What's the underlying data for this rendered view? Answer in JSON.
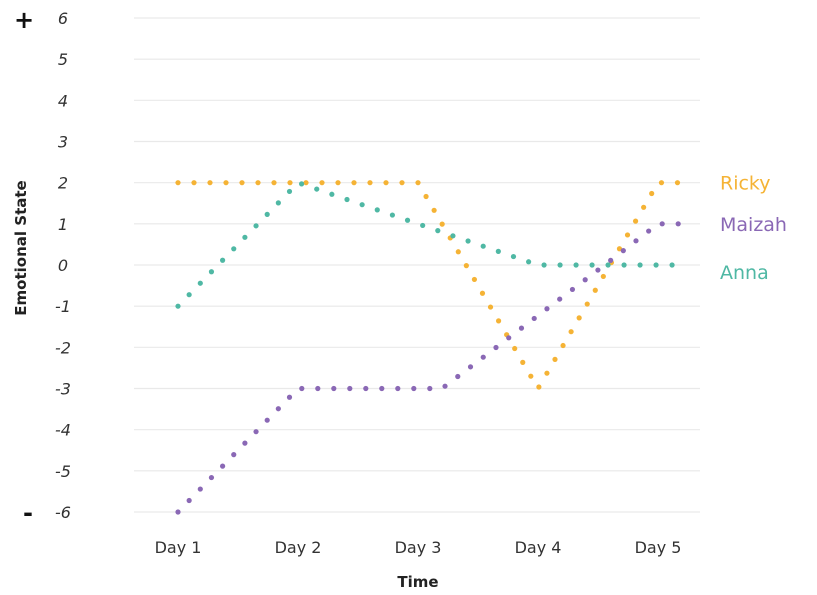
{
  "chart_data": {
    "type": "line",
    "title": "",
    "xlabel": "Time",
    "ylabel": "Emotional State",
    "ylim": [
      -6,
      6
    ],
    "yticks": [
      6,
      5,
      4,
      3,
      2,
      1,
      0,
      -1,
      -2,
      -3,
      -4,
      -5,
      -6
    ],
    "categories": [
      "Day 1",
      "Day 2",
      "Day 3",
      "Day 4",
      "Day 5"
    ],
    "scale_signs": {
      "top": "+",
      "bottom": "-"
    },
    "grid": true,
    "line_style": "dotted",
    "legend": "end-of-line labels",
    "series": [
      {
        "name": "Ricky",
        "color": "#F5B335",
        "points": [
          [
            1,
            2
          ],
          [
            3,
            2
          ],
          [
            4,
            -3
          ],
          [
            5,
            2
          ],
          [
            5.25,
            2
          ]
        ]
      },
      {
        "name": "Maizah",
        "color": "#8A68B5",
        "points": [
          [
            1,
            -6
          ],
          [
            2,
            -3
          ],
          [
            3.2,
            -3
          ],
          [
            4.6,
            0.1
          ],
          [
            5,
            1
          ],
          [
            5.25,
            1
          ]
        ]
      },
      {
        "name": "Anna",
        "color": "#4FB8A4",
        "points": [
          [
            1,
            -1
          ],
          [
            2,
            2
          ],
          [
            3,
            1
          ],
          [
            4,
            0
          ],
          [
            5.25,
            0
          ]
        ]
      }
    ]
  }
}
